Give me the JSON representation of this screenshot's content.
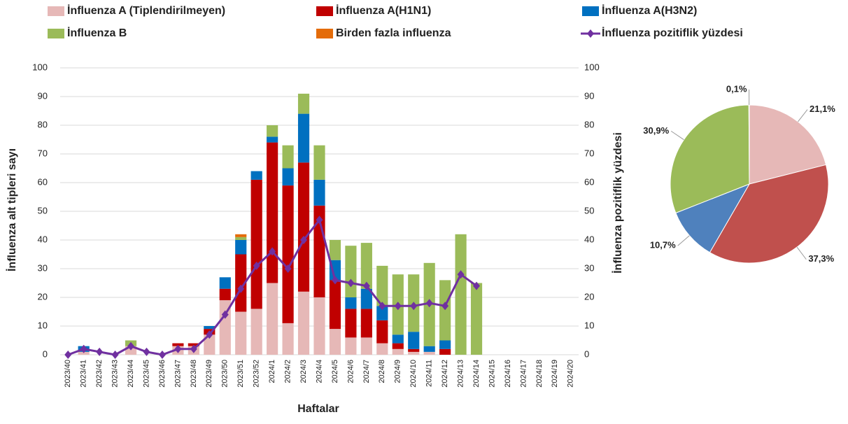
{
  "chart_data": [
    {
      "type": "bar",
      "x_label": "Haftalar",
      "y_label": "İnfluenza alt tipleri sayı",
      "y2_label": "İnfluenza pozitiflik yüzdesi",
      "stacked": true,
      "grid": true,
      "categories": [
        "2023/40",
        "2023/41",
        "2023/42",
        "2023/43",
        "2023/44",
        "2023/45",
        "2023/46",
        "2023/47",
        "2023/48",
        "2023/49",
        "2023/50",
        "2023/51",
        "2023/52",
        "2024/1",
        "2024/2",
        "2024/3",
        "2024/4",
        "2024/5",
        "2024/6",
        "2024/7",
        "2024/8",
        "2024/9",
        "2024/10",
        "2024/11",
        "2024/12",
        "2024/13",
        "2024/14",
        "2024/15",
        "2024/16",
        "2024/17",
        "2024/18",
        "2024/19",
        "2024/20"
      ],
      "ylim": [
        0,
        100
      ],
      "yticks": [
        0,
        10,
        20,
        30,
        40,
        50,
        60,
        70,
        80,
        90,
        100
      ],
      "y2lim": [
        0,
        100
      ],
      "y2ticks": [
        0,
        10,
        20,
        30,
        40,
        50,
        60,
        70,
        80,
        90,
        100
      ],
      "series": [
        {
          "name": "İnfluenza A (Tiplendirilmeyen)",
          "color": "#e6b8b7",
          "values": [
            0,
            1,
            0,
            0,
            3,
            0,
            0,
            3,
            3,
            7,
            19,
            15,
            16,
            25,
            11,
            22,
            20,
            9,
            6,
            6,
            4,
            2,
            1,
            1,
            0,
            0,
            0,
            null,
            null,
            null,
            null,
            null,
            null
          ]
        },
        {
          "name": "İnfluenza A(H1N1)",
          "color": "#c00000",
          "values": [
            0,
            0,
            0,
            0,
            0,
            0,
            0,
            1,
            1,
            2,
            4,
            20,
            45,
            49,
            48,
            45,
            32,
            17,
            10,
            10,
            8,
            2,
            1,
            0,
            2,
            0,
            0,
            null,
            null,
            null,
            null,
            null,
            null
          ]
        },
        {
          "name": "İnfluenza A(H3N2)",
          "color": "#0070c0",
          "values": [
            0,
            2,
            0,
            0,
            0,
            0,
            0,
            0,
            0,
            1,
            4,
            5,
            3,
            2,
            6,
            17,
            9,
            7,
            4,
            7,
            5,
            3,
            6,
            2,
            3,
            0,
            0,
            null,
            null,
            null,
            null,
            null,
            null
          ]
        },
        {
          "name": "İnfluenza B",
          "color": "#9bbb59",
          "values": [
            0,
            0,
            0,
            0,
            2,
            0,
            0,
            0,
            0,
            0,
            0,
            1,
            0,
            4,
            8,
            7,
            12,
            7,
            18,
            16,
            14,
            21,
            20,
            29,
            21,
            42,
            25,
            null,
            null,
            null,
            null,
            null,
            null
          ]
        },
        {
          "name": "Birden fazla influenza",
          "color": "#e46c0a",
          "values": [
            0,
            0,
            0,
            0,
            0,
            0,
            0,
            0,
            0,
            0,
            0,
            1,
            0,
            0,
            0,
            0,
            0,
            0,
            0,
            0,
            0,
            0,
            0,
            0,
            0,
            0,
            0,
            null,
            null,
            null,
            null,
            null,
            null
          ]
        },
        {
          "name": "İnfluenza pozitiflik yüzdesi",
          "color": "#7030a0",
          "type": "line",
          "axis": "y2",
          "values": [
            0,
            2,
            1,
            0,
            3,
            1,
            0,
            2,
            2,
            7,
            14,
            23,
            31,
            36,
            30,
            40,
            47,
            26,
            25,
            24,
            17,
            17,
            17,
            18,
            17,
            28,
            24,
            null,
            null,
            null,
            null,
            null,
            null
          ]
        }
      ]
    },
    {
      "type": "pie",
      "values": [
        21.1,
        37.3,
        10.7,
        30.9,
        0.1
      ],
      "value_labels": [
        "21,1%",
        "37,3%",
        "10,7%",
        "30,9%",
        "0,1%"
      ],
      "colors": [
        "#e6b8b7",
        "#c0504d",
        "#4f81bd",
        "#9bbb59",
        "#f79646"
      ]
    }
  ]
}
